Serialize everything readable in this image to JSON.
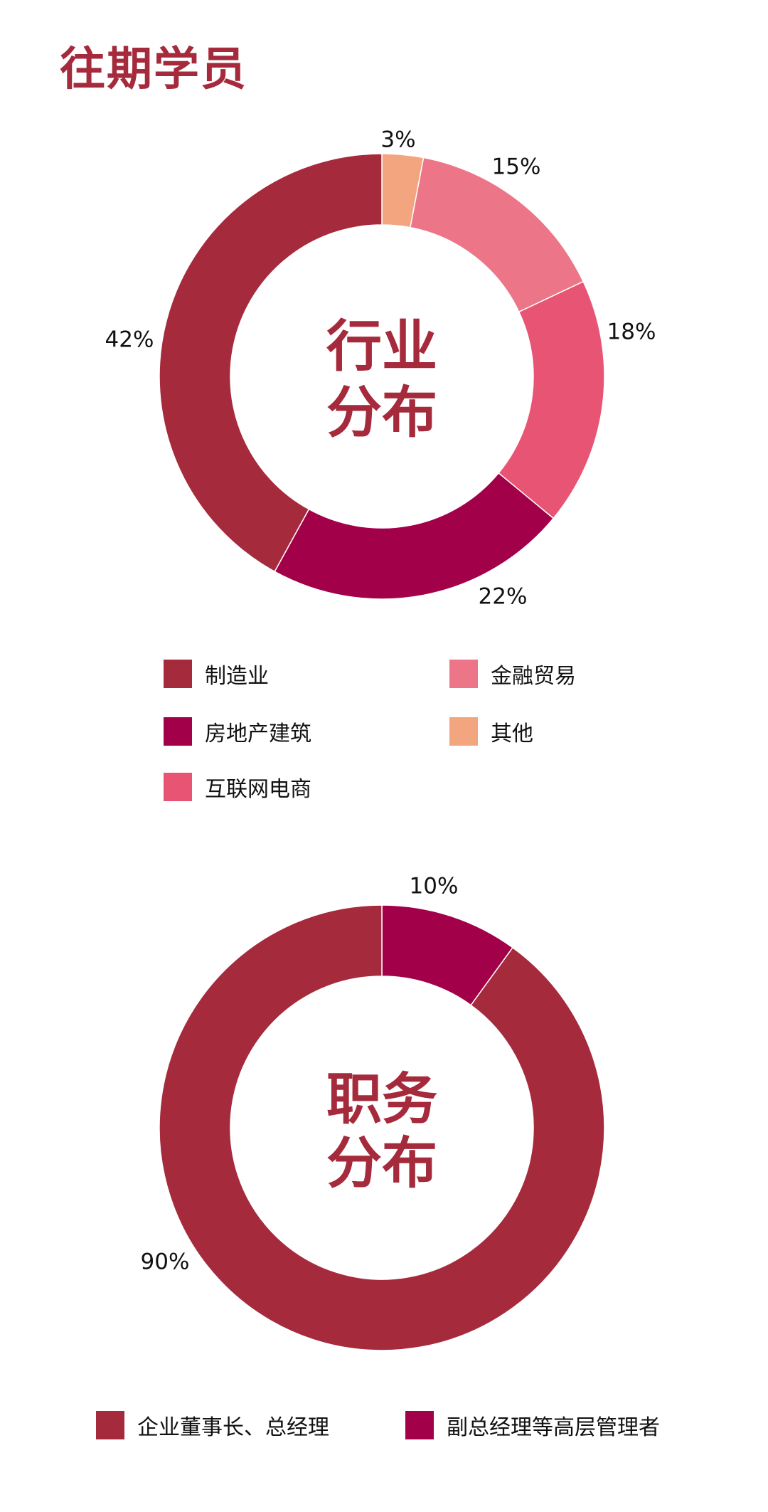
{
  "title": "往期学员",
  "chart_data": [
    {
      "type": "pie",
      "variant": "donut",
      "center_label": [
        "行业",
        "分布"
      ],
      "categories": [
        "其他",
        "金融贸易",
        "互联网电商",
        "房地产建筑",
        "制造业"
      ],
      "values": [
        3,
        15,
        18,
        22,
        42
      ],
      "data_labels": [
        "3%",
        "15%",
        "18%",
        "22%",
        "42%"
      ],
      "colors": [
        "#f2a57e",
        "#ec7588",
        "#e85474",
        "#a3004a",
        "#a52a3c"
      ],
      "legend": [
        "制造业",
        "金融贸易",
        "房地产建筑",
        "其他",
        "互联网电商"
      ],
      "legend_colors": [
        "#a52a3c",
        "#ec7588",
        "#a3004a",
        "#f2a57e",
        "#e85474"
      ],
      "legend_position": "bottom"
    },
    {
      "type": "pie",
      "variant": "donut",
      "center_label": [
        "职务",
        "分布"
      ],
      "categories": [
        "副总经理等高层管理者",
        "企业董事长、总经理"
      ],
      "values": [
        10,
        90
      ],
      "data_labels": [
        "10%",
        "90%"
      ],
      "colors": [
        "#a3004a",
        "#a52a3c"
      ],
      "legend": [
        "企业董事长、总经理",
        "副总经理等高层管理者"
      ],
      "legend_colors": [
        "#a52a3c",
        "#a3004a"
      ],
      "legend_position": "bottom"
    }
  ]
}
